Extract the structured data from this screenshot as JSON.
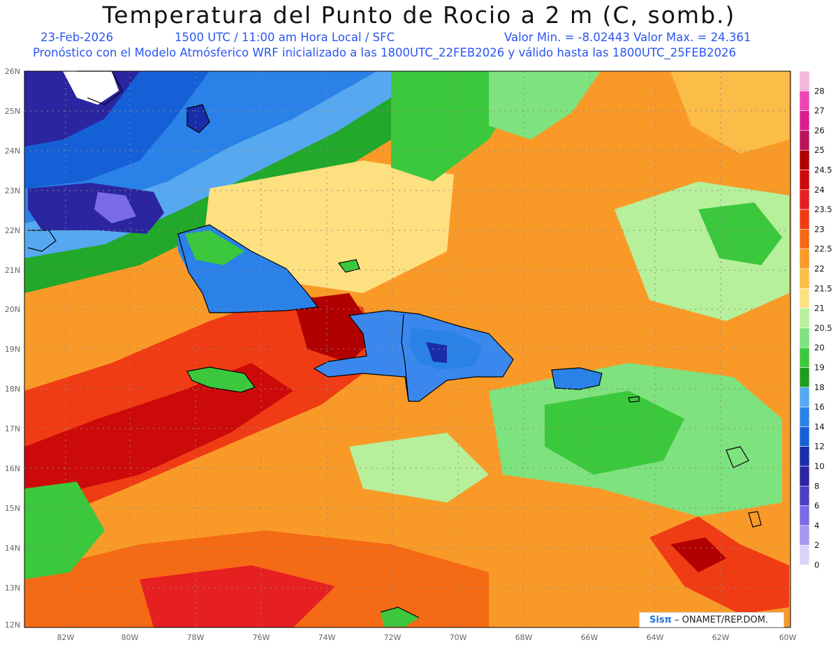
{
  "header": {
    "title": "Temperatura del Punto de Rocio a 2 m (C, somb.)",
    "date": "23-Feb-2026",
    "time": "1500 UTC / 11:00 am Hora Local / SFC",
    "minmax": "Valor Min. = -8.02443   Valor Max. = 24.361",
    "model": "Pronóstico con el Modelo Atmósferico WRF inicializado a las 1800UTC_22FEB2026 y válido hasta las  1800UTC_25FEB2026"
  },
  "axes": {
    "lat_labels": [
      "26N",
      "25N",
      "24N",
      "23N",
      "22N",
      "21N",
      "20N",
      "19N",
      "18N",
      "17N",
      "16N",
      "15N",
      "14N",
      "13N",
      "12N"
    ],
    "lon_labels": [
      "82W",
      "80W",
      "78W",
      "76W",
      "74W",
      "72W",
      "70W",
      "68W",
      "66W",
      "64W",
      "62W",
      "60W"
    ]
  },
  "legend": {
    "labels": [
      "28",
      "27",
      "26",
      "25",
      "24.5",
      "24",
      "23.5",
      "23",
      "22.5",
      "22",
      "21.5",
      "21",
      "20.5",
      "20",
      "19",
      "18",
      "16",
      "14",
      "12",
      "10",
      "8",
      "6",
      "4",
      "2",
      "0"
    ],
    "colors": [
      "#f3b7dc",
      "#ee45b5",
      "#dc1e8d",
      "#b8145c",
      "#b00000",
      "#cc0a0a",
      "#e62020",
      "#f03c14",
      "#f56a14",
      "#f99a28",
      "#fbbd48",
      "#fde080",
      "#b6f09a",
      "#7ee27e",
      "#3cc83c",
      "#1e9e1e",
      "#56a8f0",
      "#2a82e8",
      "#1560d6",
      "#1a2ca8",
      "#2b25a0",
      "#4c3fc2",
      "#7a6be6",
      "#a897f0",
      "#d8d4f8"
    ]
  },
  "credit": {
    "logo": "Sisπ",
    "text": "– ONAMET/REP.DOM."
  }
}
